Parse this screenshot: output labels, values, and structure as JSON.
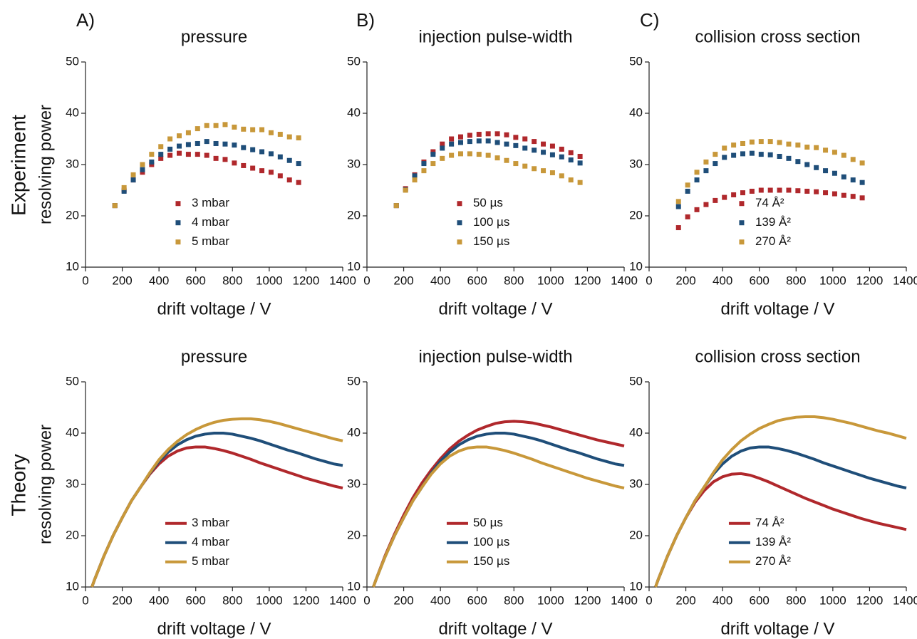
{
  "panel_labels": [
    "A)",
    "B)",
    "C)"
  ],
  "row_labels": [
    "Experiment",
    "Theory"
  ],
  "chart_data": [
    {
      "type": "scatter",
      "title": "pressure",
      "x_label": "drift voltage / V",
      "y_label": "resolving power",
      "xlim": [
        0,
        1400
      ],
      "ylim": [
        10,
        50
      ],
      "xticks": [
        0,
        200,
        400,
        600,
        800,
        1000,
        1200,
        1400
      ],
      "yticks": [
        10,
        20,
        30,
        40,
        50
      ],
      "legend": "lower center",
      "x": [
        160,
        210,
        260,
        310,
        360,
        410,
        460,
        510,
        560,
        610,
        660,
        710,
        760,
        810,
        860,
        910,
        960,
        1010,
        1060,
        1110,
        1160
      ],
      "series": [
        {
          "name": "3 mbar",
          "color": "#b0282c",
          "values": [
            22,
            25,
            27,
            28.5,
            30,
            31.2,
            31.8,
            32.2,
            32,
            32,
            31.8,
            31.2,
            31,
            30.3,
            29.8,
            29.3,
            28.8,
            28.5,
            27.8,
            27,
            26.5
          ]
        },
        {
          "name": "4 mbar",
          "color": "#1f4e79",
          "values": [
            22,
            24.8,
            27,
            29,
            30.5,
            32,
            33,
            33.6,
            33.9,
            34.1,
            34.5,
            34.1,
            34,
            33.8,
            33.3,
            32.9,
            32.5,
            32.1,
            31.5,
            30.8,
            30.2
          ]
        },
        {
          "name": "5 mbar",
          "color": "#c8983a",
          "values": [
            22,
            25.5,
            28,
            30,
            32,
            33.5,
            35,
            35.6,
            36.2,
            37,
            37.6,
            37.6,
            37.8,
            37.3,
            36.9,
            36.8,
            36.8,
            36.2,
            35.9,
            35.4,
            35.2
          ]
        }
      ]
    },
    {
      "type": "scatter",
      "title": "injection pulse-width",
      "x_label": "drift voltage / V",
      "xlim": [
        0,
        1400
      ],
      "ylim": [
        10,
        50
      ],
      "xticks": [
        0,
        200,
        400,
        600,
        800,
        1000,
        1200,
        1400
      ],
      "yticks": [
        10,
        20,
        30,
        40,
        50
      ],
      "legend": "lower center",
      "x": [
        160,
        210,
        260,
        310,
        360,
        410,
        460,
        510,
        560,
        610,
        660,
        710,
        760,
        810,
        860,
        910,
        960,
        1010,
        1060,
        1110,
        1160
      ],
      "series": [
        {
          "name": "50 µs",
          "color": "#b0282c",
          "values": [
            22,
            25.3,
            28,
            30.5,
            32.5,
            34,
            35,
            35.4,
            35.7,
            35.9,
            36,
            36,
            35.8,
            35.3,
            35,
            34.5,
            34,
            33.6,
            33,
            32.3,
            31.6
          ]
        },
        {
          "name": "100 µs",
          "color": "#1f4e79",
          "values": [
            22,
            25.1,
            27.8,
            30.2,
            32,
            33.2,
            34,
            34.3,
            34.5,
            34.6,
            34.6,
            34.3,
            34,
            33.7,
            33.2,
            32.8,
            32.4,
            31.9,
            31.5,
            30.9,
            30.3
          ]
        },
        {
          "name": "150 µs",
          "color": "#c8983a",
          "values": [
            22,
            25,
            27,
            28.8,
            30.2,
            31.2,
            31.8,
            32.1,
            32.1,
            32,
            31.8,
            31.3,
            30.8,
            30.2,
            29.7,
            29.2,
            28.8,
            28.4,
            27.8,
            27,
            26.5
          ]
        }
      ]
    },
    {
      "type": "scatter",
      "title": "collision cross section",
      "x_label": "drift voltage / V",
      "xlim": [
        0,
        1400
      ],
      "ylim": [
        10,
        50
      ],
      "xticks": [
        0,
        200,
        400,
        600,
        800,
        1000,
        1200,
        1400
      ],
      "yticks": [
        10,
        20,
        30,
        40,
        50
      ],
      "legend": "lower center",
      "x": [
        160,
        210,
        260,
        310,
        360,
        410,
        460,
        510,
        560,
        610,
        660,
        710,
        760,
        810,
        860,
        910,
        960,
        1010,
        1060,
        1110,
        1160
      ],
      "series": [
        {
          "name": "74 Å²",
          "color": "#b0282c",
          "values": [
            17.7,
            19.8,
            21.2,
            22.2,
            23,
            23.6,
            24.1,
            24.5,
            24.8,
            25,
            25,
            25,
            25,
            24.9,
            24.8,
            24.7,
            24.5,
            24.3,
            24,
            23.8,
            23.5
          ]
        },
        {
          "name": "139 Å²",
          "color": "#1f4e79",
          "values": [
            21.8,
            24.8,
            27,
            28.8,
            30.2,
            31.4,
            31.8,
            32.1,
            32.2,
            32,
            31.9,
            31.6,
            31.2,
            30.6,
            30,
            29.4,
            28.8,
            28.3,
            27.6,
            27,
            26.5
          ]
        },
        {
          "name": "270 Å²",
          "color": "#c8983a",
          "values": [
            22.8,
            26,
            28.5,
            30.5,
            32,
            33.2,
            33.8,
            34.1,
            34.4,
            34.5,
            34.5,
            34.3,
            34,
            33.8,
            33.4,
            33.3,
            32.8,
            32.4,
            31.8,
            31,
            30.3
          ]
        }
      ]
    },
    {
      "type": "line",
      "title": "pressure",
      "x_label": "drift voltage / V",
      "y_label": "resolving power",
      "xlim": [
        0,
        1400
      ],
      "ylim": [
        10,
        50
      ],
      "xticks": [
        0,
        200,
        400,
        600,
        800,
        1000,
        1200,
        1400
      ],
      "yticks": [
        10,
        20,
        30,
        40,
        50
      ],
      "legend": "lower center",
      "x": [
        35,
        50,
        100,
        150,
        200,
        250,
        300,
        350,
        400,
        450,
        500,
        550,
        600,
        650,
        700,
        750,
        800,
        850,
        900,
        950,
        1000,
        1050,
        1100,
        1150,
        1200,
        1250,
        1300,
        1350,
        1400
      ],
      "series": [
        {
          "name": "3 mbar",
          "color": "#b0282c",
          "values": [
            10,
            11.5,
            16,
            20,
            23.5,
            26.8,
            29.5,
            32,
            34,
            35.5,
            36.5,
            37.1,
            37.3,
            37.3,
            37,
            36.6,
            36.1,
            35.5,
            34.9,
            34.2,
            33.6,
            33,
            32.4,
            31.8,
            31.2,
            30.7,
            30.2,
            29.7,
            29.3
          ]
        },
        {
          "name": "4 mbar",
          "color": "#1f4e79",
          "values": [
            10,
            11.5,
            16,
            20,
            23.5,
            26.8,
            29.5,
            32.2,
            34.5,
            36.3,
            37.7,
            38.7,
            39.4,
            39.8,
            40,
            40,
            39.8,
            39.4,
            39,
            38.5,
            37.9,
            37.3,
            36.7,
            36.2,
            35.6,
            35,
            34.5,
            34,
            33.7
          ]
        },
        {
          "name": "5 mbar",
          "color": "#c8983a",
          "values": [
            10,
            11.5,
            16,
            20,
            23.5,
            26.8,
            29.5,
            32.3,
            34.8,
            36.8,
            38.4,
            39.7,
            40.7,
            41.5,
            42.1,
            42.5,
            42.7,
            42.8,
            42.8,
            42.6,
            42.3,
            41.9,
            41.4,
            40.9,
            40.4,
            39.9,
            39.4,
            38.9,
            38.5
          ]
        }
      ]
    },
    {
      "type": "line",
      "title": "injection pulse-width",
      "x_label": "drift voltage / V",
      "xlim": [
        0,
        1400
      ],
      "ylim": [
        10,
        50
      ],
      "xticks": [
        0,
        200,
        400,
        600,
        800,
        1000,
        1200,
        1400
      ],
      "yticks": [
        10,
        20,
        30,
        40,
        50
      ],
      "legend": "lower center",
      "x": [
        35,
        50,
        100,
        150,
        200,
        250,
        300,
        350,
        400,
        450,
        500,
        550,
        600,
        650,
        700,
        750,
        800,
        850,
        900,
        950,
        1000,
        1050,
        1100,
        1150,
        1200,
        1250,
        1300,
        1350,
        1400
      ],
      "series": [
        {
          "name": "50 µs",
          "color": "#b0282c",
          "values": [
            10,
            11.5,
            16.2,
            20.3,
            24,
            27.4,
            30.3,
            32.8,
            35,
            36.9,
            38.4,
            39.6,
            40.6,
            41.3,
            41.9,
            42.2,
            42.3,
            42.2,
            42,
            41.6,
            41.2,
            40.7,
            40.2,
            39.7,
            39.2,
            38.7,
            38.3,
            37.9,
            37.5
          ]
        },
        {
          "name": "100 µs",
          "color": "#1f4e79",
          "values": [
            10,
            11.5,
            16,
            20,
            23.5,
            26.8,
            29.5,
            32.2,
            34.5,
            36.3,
            37.7,
            38.7,
            39.4,
            39.8,
            40,
            40,
            39.8,
            39.4,
            39,
            38.5,
            37.9,
            37.3,
            36.7,
            36.2,
            35.6,
            35,
            34.5,
            34,
            33.7
          ]
        },
        {
          "name": "150 µs",
          "color": "#c8983a",
          "values": [
            10,
            11.5,
            16,
            20,
            23.5,
            26.8,
            29.5,
            32,
            34,
            35.5,
            36.5,
            37.1,
            37.3,
            37.3,
            37,
            36.6,
            36.1,
            35.5,
            34.9,
            34.2,
            33.6,
            33,
            32.4,
            31.8,
            31.2,
            30.7,
            30.2,
            29.7,
            29.3
          ]
        }
      ]
    },
    {
      "type": "line",
      "title": "collision cross section",
      "x_label": "drift voltage / V",
      "xlim": [
        0,
        1400
      ],
      "ylim": [
        10,
        50
      ],
      "xticks": [
        0,
        200,
        400,
        600,
        800,
        1000,
        1200,
        1400
      ],
      "yticks": [
        10,
        20,
        30,
        40,
        50
      ],
      "legend": "lower center",
      "x": [
        35,
        50,
        100,
        150,
        200,
        250,
        300,
        350,
        400,
        450,
        500,
        550,
        600,
        650,
        700,
        750,
        800,
        850,
        900,
        950,
        1000,
        1050,
        1100,
        1150,
        1200,
        1250,
        1300,
        1350,
        1400
      ],
      "series": [
        {
          "name": "74 Å²",
          "color": "#b0282c",
          "values": [
            10,
            11.5,
            16,
            20,
            23.5,
            26.5,
            28.8,
            30.5,
            31.5,
            32,
            32.1,
            31.8,
            31.2,
            30.5,
            29.7,
            28.9,
            28.1,
            27.3,
            26.6,
            25.9,
            25.2,
            24.6,
            24,
            23.4,
            22.9,
            22.4,
            22,
            21.6,
            21.2
          ]
        },
        {
          "name": "139 Å²",
          "color": "#1f4e79",
          "values": [
            10,
            11.5,
            16,
            20,
            23.5,
            26.8,
            29.5,
            32,
            34,
            35.5,
            36.5,
            37.1,
            37.3,
            37.3,
            37,
            36.6,
            36.1,
            35.5,
            34.9,
            34.2,
            33.6,
            33,
            32.4,
            31.8,
            31.2,
            30.7,
            30.2,
            29.7,
            29.3
          ]
        },
        {
          "name": "270 Å²",
          "color": "#c8983a",
          "values": [
            10,
            11.5,
            16,
            20,
            23.5,
            26.8,
            29.5,
            32.3,
            34.8,
            36.8,
            38.5,
            39.8,
            40.9,
            41.7,
            42.4,
            42.8,
            43.1,
            43.2,
            43.2,
            43,
            42.7,
            42.3,
            41.9,
            41.4,
            40.9,
            40.4,
            40,
            39.5,
            39
          ]
        }
      ]
    }
  ]
}
